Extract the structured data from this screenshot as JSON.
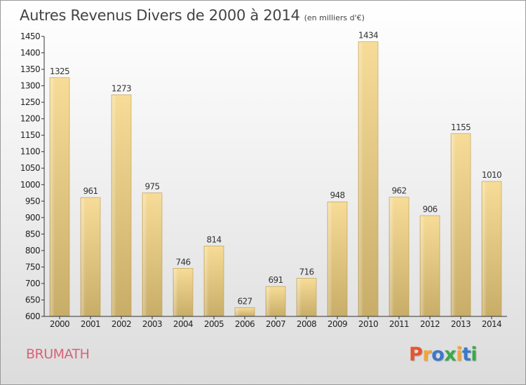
{
  "header": {
    "title": "Autres Revenus Divers de 2000 à 2014",
    "unit": "(en milliers d'€)"
  },
  "footer": {
    "city": "BRUMATH",
    "brand": "Proxiti",
    "brand_colors": [
      "#e8542e",
      "#f2a43a",
      "#3a78c9",
      "#39a94a",
      "#f2a43a",
      "#3a78c9",
      "#39a94a"
    ]
  },
  "chart_data": {
    "type": "bar",
    "categories": [
      "2000",
      "2001",
      "2002",
      "2003",
      "2004",
      "2005",
      "2006",
      "2007",
      "2008",
      "2009",
      "2010",
      "2011",
      "2012",
      "2013",
      "2014"
    ],
    "values": [
      1325,
      961,
      1273,
      975,
      746,
      814,
      627,
      691,
      716,
      948,
      1434,
      962,
      906,
      1155,
      1010
    ],
    "ylim": [
      600,
      1450
    ],
    "ytick_step": 50,
    "bar_color": "#e8c878",
    "legend": "none",
    "grid": false
  }
}
